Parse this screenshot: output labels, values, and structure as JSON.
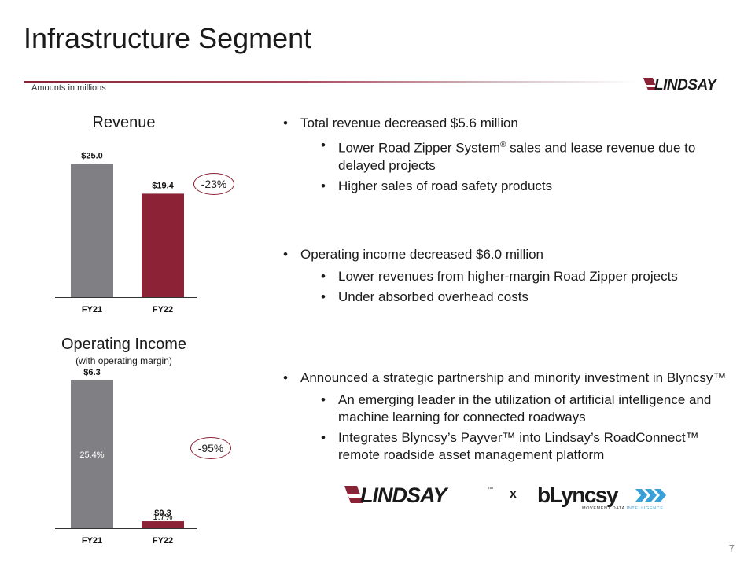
{
  "header": {
    "title": "Infrastructure Segment",
    "amounts_note": "Amounts in millions",
    "logo_text": "LINDSAY",
    "page_number": "7"
  },
  "colors": {
    "accent": "#8b2235",
    "gray_bar": "#808084"
  },
  "revenue_chart": {
    "title": "Revenue",
    "change": "-23%"
  },
  "income_chart": {
    "title": "Operating Income",
    "subtitle": "(with operating margin)",
    "change": "-95%"
  },
  "chart_data": [
    {
      "type": "bar",
      "title": "Revenue",
      "categories": [
        "FY21",
        "FY22"
      ],
      "values": [
        25.0,
        19.4
      ],
      "value_labels": [
        "$25.0",
        "$19.4"
      ],
      "colors": [
        "#808084",
        "#8b2235"
      ],
      "annotation": "-23%",
      "ylim": [
        0,
        28
      ]
    },
    {
      "type": "bar",
      "title": "Operating Income",
      "subtitle": "(with operating margin)",
      "categories": [
        "FY21",
        "FY22"
      ],
      "values": [
        6.3,
        0.3
      ],
      "value_labels": [
        "$6.3",
        "$0.3"
      ],
      "margins": [
        "25.4%",
        "1.7%"
      ],
      "colors": [
        "#808084",
        "#8b2235"
      ],
      "annotation": "-95%",
      "ylim": [
        0,
        6.8
      ]
    }
  ],
  "bullets": {
    "group1": {
      "main": "Total revenue decreased $5.6 million",
      "sub1_pre": "Lower Road Zipper System",
      "sub1_reg": "®",
      "sub1_post": " sales and lease revenue due to delayed projects",
      "sub2": "Higher sales of road safety products"
    },
    "group2": {
      "main": "Operating income decreased $6.0 million",
      "sub1": "Lower revenues from higher-margin Road Zipper projects",
      "sub2": "Under absorbed overhead costs"
    },
    "group3": {
      "main": "Announced a strategic partnership and minority investment in Blyncsy™",
      "sub1": "An emerging leader in the utilization of artificial intelligence and machine learning for connected roadways",
      "sub2": "Integrates Blyncsy’s Payver™ into Lindsay’s RoadConnect™ remote roadside asset management platform"
    }
  },
  "partnership": {
    "lindsay_logo": "LINDSAY",
    "lindsay_tm": "™",
    "times": "x",
    "blyncsy_logo": "bLyncsy",
    "blyncsy_tagline_a": "MOVEMENT DATA ",
    "blyncsy_tagline_b": "INTELLIGENCE"
  }
}
